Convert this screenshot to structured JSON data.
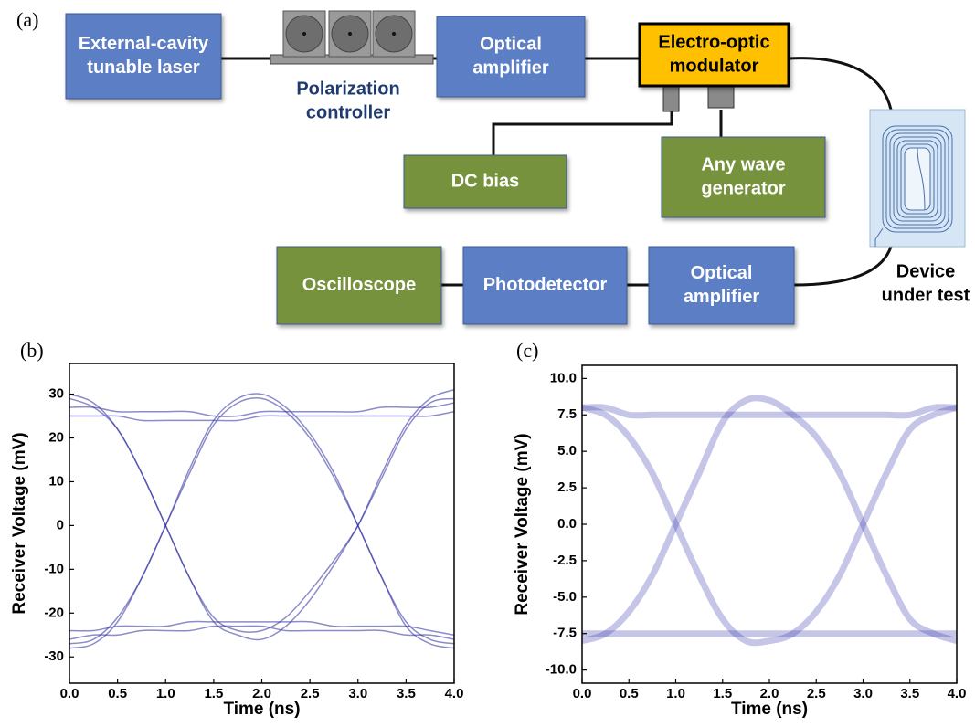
{
  "panel_a": "(a)",
  "diagram": {
    "nodes": [
      {
        "lines": [
          "External-cavity",
          "tunable laser"
        ],
        "color": "#5b7ec5",
        "text_color": "#ffffff"
      },
      {
        "lines": [
          "Optical",
          "amplifier"
        ],
        "color": "#5b7ec5",
        "text_color": "#ffffff"
      },
      {
        "lines": [
          "Electro-optic",
          "modulator"
        ],
        "color": "#ffc000",
        "text_color": "#000000"
      },
      {
        "lines": [
          "DC bias"
        ],
        "color": "#76923c",
        "text_color": "#ffffff"
      },
      {
        "lines": [
          "Any wave",
          "generator"
        ],
        "color": "#76923c",
        "text_color": "#ffffff"
      },
      {
        "lines": [
          "Oscilloscope"
        ],
        "color": "#76923c",
        "text_color": "#ffffff"
      },
      {
        "lines": [
          "Photodetector"
        ],
        "color": "#5b7ec5",
        "text_color": "#ffffff"
      },
      {
        "lines": [
          "Optical",
          "amplifier"
        ],
        "color": "#5b7ec5",
        "text_color": "#ffffff"
      }
    ],
    "captions": [
      {
        "lines": [
          "Polarization",
          "controller"
        ],
        "text_color": "#1f3a6e"
      },
      {
        "lines": [
          "Device",
          "under test"
        ],
        "text_color": "#000000"
      }
    ]
  },
  "chart_data": [
    {
      "type": "line",
      "panel": "(b)",
      "xlabel": "Time (ns)",
      "ylabel": "Receiver Voltage (mV)",
      "x": [
        0,
        0.25,
        0.5,
        0.75,
        1,
        1.25,
        1.5,
        1.75,
        2,
        2.25,
        2.5,
        2.75,
        3,
        3.25,
        3.5,
        3.75,
        4
      ],
      "xlim": [
        0,
        4
      ],
      "ylim": [
        -36,
        37
      ],
      "xticks": [
        {
          "value": 0,
          "label": "0.0"
        },
        0.5,
        {
          "value": 1,
          "label": "1.0"
        },
        1.5,
        {
          "value": 2,
          "label": "2.0"
        },
        2.5,
        {
          "value": 3,
          "label": "3.0"
        },
        3.5,
        {
          "value": 4,
          "label": "4.0"
        }
      ],
      "yticks": [
        -30,
        -20,
        -10,
        0,
        10,
        20,
        30
      ],
      "series": [
        {
          "color": "#2b2b9e",
          "values": [
            -27,
            -26,
            -21,
            -12,
            0,
            13,
            24,
            29,
            30,
            27,
            21,
            12,
            0,
            -12,
            -22,
            -26,
            -27
          ]
        },
        {
          "color": "#2b2b9e",
          "values": [
            29,
            27,
            22,
            12,
            0,
            -12,
            -22,
            -25,
            -26,
            -23,
            -17,
            -9,
            0,
            11,
            22,
            28,
            29
          ]
        },
        {
          "color": "#2b2b9e",
          "values": [
            30,
            28,
            22,
            12,
            0,
            -12,
            -21,
            -24,
            -24,
            -21,
            -15,
            -8,
            0,
            12,
            23,
            29,
            31
          ]
        },
        {
          "color": "#2b2b9e",
          "values": [
            25,
            25,
            25,
            24,
            24,
            24,
            24,
            24,
            25,
            25,
            25,
            25,
            25,
            25,
            25,
            25,
            26
          ]
        },
        {
          "color": "#2b2b9e",
          "values": [
            27,
            27,
            26,
            26,
            26,
            26,
            25,
            25,
            26,
            26,
            26,
            26,
            26,
            27,
            27,
            27,
            28
          ]
        },
        {
          "color": "#2b2b9e",
          "values": [
            -24,
            -24,
            -23,
            -23,
            -23,
            -22,
            -22,
            -22,
            -22,
            -22,
            -22,
            -23,
            -23,
            -23,
            -23,
            -24,
            -25
          ]
        },
        {
          "color": "#2b2b9e",
          "values": [
            -26,
            -25,
            -25,
            -24,
            -24,
            -24,
            -23,
            -23,
            -23,
            -24,
            -24,
            -24,
            -24,
            -24,
            -25,
            -25,
            -26
          ]
        },
        {
          "color": "#2b2b9e",
          "values": [
            -28,
            -27,
            -22,
            -12,
            0,
            12,
            23,
            28,
            29,
            26,
            20,
            11,
            0,
            -12,
            -23,
            -27,
            -28
          ]
        }
      ]
    },
    {
      "type": "line",
      "panel": "(c)",
      "xlabel": "Time (ns)",
      "ylabel": "Receiver Voltage (mV)",
      "x": [
        0,
        0.25,
        0.5,
        0.75,
        1,
        1.25,
        1.5,
        1.75,
        2,
        2.25,
        2.5,
        2.75,
        3,
        3.25,
        3.5,
        3.75,
        4
      ],
      "xlim": [
        0,
        4
      ],
      "ylim": [
        -10.9,
        10.9
      ],
      "xticks": [
        {
          "value": 0,
          "label": "0.0"
        },
        0.5,
        {
          "value": 1,
          "label": "1.0"
        },
        1.5,
        {
          "value": 2,
          "label": "2.0"
        },
        2.5,
        {
          "value": 3,
          "label": "3.0"
        },
        3.5,
        {
          "value": 4,
          "label": "4.0"
        }
      ],
      "yticks": [
        {
          "value": -10,
          "label": "-10.0"
        },
        -7.5,
        {
          "value": -5,
          "label": "-5.0"
        },
        -2.5,
        {
          "value": 0,
          "label": "0.0"
        },
        2.5,
        {
          "value": 5,
          "label": "5.0"
        },
        7.5,
        {
          "value": 10,
          "label": "10.0"
        }
      ],
      "series": [
        {
          "color": "#3030a8",
          "values": [
            -8,
            -7.5,
            -6,
            -3.5,
            0,
            3.5,
            7,
            8.5,
            8.5,
            7.5,
            6,
            3.5,
            0,
            -3.5,
            -6.5,
            -7.5,
            -8
          ]
        },
        {
          "color": "#3030a8",
          "values": [
            8,
            7.5,
            6,
            3.5,
            0,
            -3.5,
            -6.5,
            -8,
            -8,
            -7.5,
            -6,
            -3.5,
            0,
            3.5,
            6.5,
            7.5,
            8
          ]
        },
        {
          "color": "#3030a8",
          "values": [
            8,
            8,
            7.5,
            7.5,
            7.5,
            7.5,
            7.5,
            7.5,
            7.5,
            7.5,
            7.5,
            7.5,
            7.5,
            7.5,
            7.5,
            8,
            8
          ]
        },
        {
          "color": "#3030a8",
          "values": [
            -7.5,
            -7.5,
            -7.5,
            -7.5,
            -7.5,
            -7.5,
            -7.5,
            -7.5,
            -7.5,
            -7.5,
            -7.5,
            -7.5,
            -7.5,
            -7.5,
            -7.5,
            -7.5,
            -7.5
          ]
        }
      ]
    }
  ]
}
